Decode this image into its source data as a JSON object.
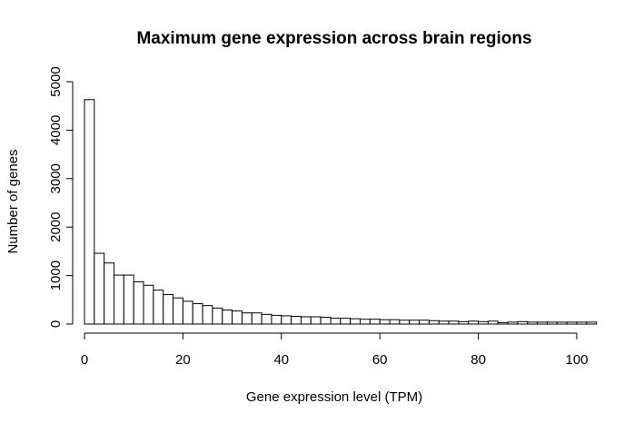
{
  "chart_data": {
    "type": "bar",
    "title": "Maximum gene expression across brain regions",
    "xlabel": "Gene expression level (TPM)",
    "ylabel": "Number of genes",
    "bin_width": 2,
    "x_start": 0,
    "xlim": [
      0,
      104
    ],
    "ylim": [
      0,
      5000
    ],
    "x_ticks": [
      0,
      20,
      40,
      60,
      80,
      100
    ],
    "y_ticks": [
      0,
      1000,
      2000,
      3000,
      4000,
      5000
    ],
    "values": [
      4630,
      1460,
      1260,
      1010,
      1010,
      870,
      800,
      700,
      610,
      540,
      470,
      420,
      380,
      330,
      290,
      270,
      230,
      230,
      200,
      180,
      170,
      160,
      150,
      150,
      140,
      120,
      120,
      110,
      100,
      100,
      90,
      90,
      80,
      80,
      80,
      70,
      60,
      60,
      50,
      60,
      50,
      60,
      30,
      40,
      50,
      40,
      40,
      40,
      40,
      40,
      40,
      40
    ]
  },
  "colors": {
    "bar_fill": "#ffffff",
    "bar_stroke": "#000000",
    "text": "#000000",
    "background": "#ffffff"
  }
}
